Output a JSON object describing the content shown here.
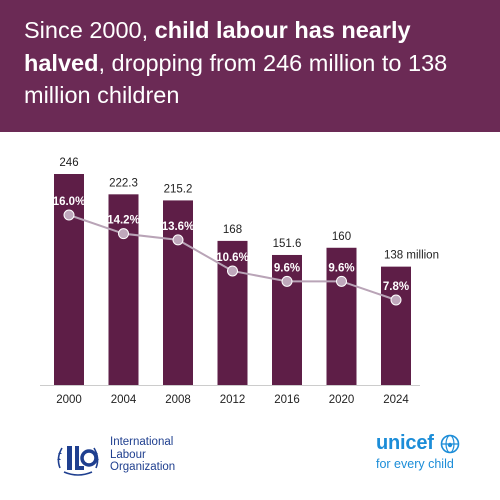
{
  "headline": {
    "part1": "Since 2000, ",
    "bold": "child labour has nearly halved",
    "part2": ", dropping from 246 million to 138 million children"
  },
  "colors": {
    "banner": "#6b2a55",
    "bar": "#5e1e47",
    "line": "#b9a4b7",
    "marker": "#bfa8bc",
    "text_dark": "#222222",
    "ilo_blue": "#1f3f8f",
    "unicef_blue": "#1c8dd8"
  },
  "chart_data": {
    "type": "bar",
    "title": "",
    "xlabel": "",
    "ylabel": "",
    "categories": [
      "2000",
      "2004",
      "2008",
      "2012",
      "2016",
      "2020",
      "2024"
    ],
    "series": [
      {
        "values": [
          246,
          222.3,
          215.2,
          168,
          151.6,
          160,
          138
        ],
        "value_labels": [
          "246",
          "222.3",
          "215.2",
          "168",
          "151.6",
          "160",
          "138 million"
        ]
      },
      {
        "type": "line",
        "values": [
          16.0,
          14.2,
          13.6,
          10.6,
          9.6,
          9.6,
          7.8
        ],
        "value_labels": [
          "16.0%",
          "14.2%",
          "13.6%",
          "10.6%",
          "9.6%",
          "9.6%",
          "7.8%"
        ]
      }
    ],
    "ylim": [
      0,
      246
    ],
    "grid": false,
    "legend": "none"
  },
  "footer": {
    "ilo_logo_icon": "ilo-emblem-icon",
    "ilo_line1": "International",
    "ilo_line2": "Labour",
    "ilo_line3": "Organization",
    "unicef_word": "unicef",
    "unicef_globe_icon": "unicef-globe-icon",
    "unicef_tagline": "for every child"
  }
}
